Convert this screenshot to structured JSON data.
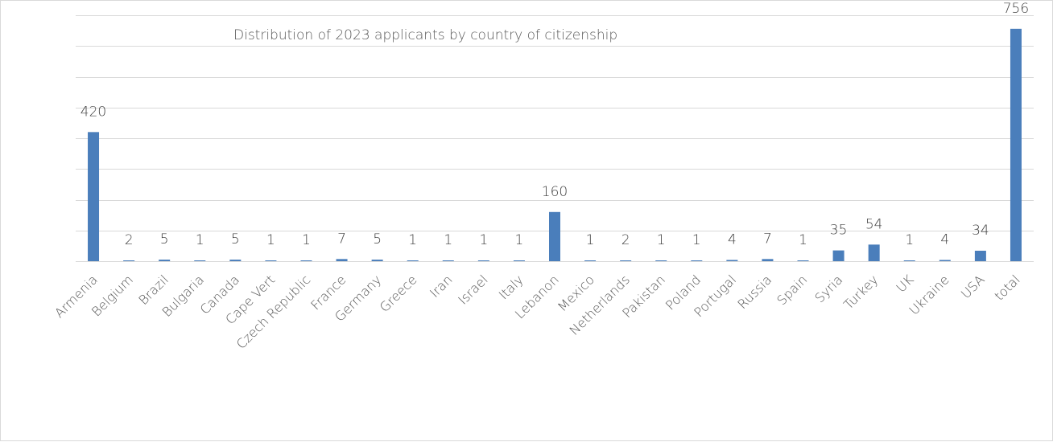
{
  "chart_data": {
    "type": "bar",
    "title": "Distribution of 2023 applicants by country of citizenship",
    "categories": [
      "Armenia",
      "Belgium",
      "Brazil",
      "Bulgaria",
      "Canada",
      "Cape Vert",
      "Czech Republic",
      "France",
      "Germany",
      "Greece",
      "Iran",
      "Israel",
      "Italy",
      "Lebanon",
      "Mexico",
      "Netherlands",
      "Pakistan",
      "Poland",
      "Portugal",
      "Russia",
      "Spain",
      "Syria",
      "Turkey",
      "UK",
      "Ukraine",
      "USA",
      "total"
    ],
    "values": [
      420,
      2,
      5,
      1,
      5,
      1,
      1,
      7,
      5,
      1,
      1,
      1,
      1,
      160,
      1,
      2,
      1,
      1,
      4,
      7,
      1,
      35,
      54,
      1,
      4,
      34,
      756
    ],
    "ylim": [
      0,
      800
    ],
    "grid": true,
    "legend": "none",
    "bar_color": "#4a7ebb"
  }
}
